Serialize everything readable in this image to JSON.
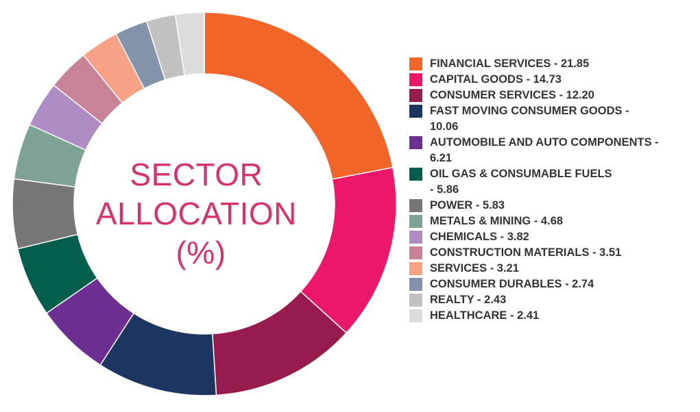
{
  "chart_data": {
    "type": "pie",
    "title": "SECTOR\nALLOCATION\n(%)",
    "title_lines": [
      "SECTOR",
      "ALLOCATION",
      "(%)"
    ],
    "title_color": "#d6336c",
    "legend_placement": "right",
    "slices": [
      {
        "label": "FINANCIAL SERVICES - 21.85",
        "value": 21.85,
        "color": "#f26529"
      },
      {
        "label": "CAPITAL GOODS - 14.73",
        "value": 14.73,
        "color": "#ed1769"
      },
      {
        "label": "CONSUMER SERVICES - 12.20",
        "value": 12.2,
        "color": "#981b4e"
      },
      {
        "label": "FAST MOVING CONSUMER GOODS -\n10.06",
        "value": 10.06,
        "color": "#1c3661"
      },
      {
        "label": "AUTOMOBILE AND AUTO COMPONENTS -\n6.21",
        "value": 6.21,
        "color": "#6d2e92"
      },
      {
        "label": "OIL GAS & CONSUMABLE FUELS\n- 5.86",
        "value": 5.86,
        "color": "#035f4c"
      },
      {
        "label": "POWER - 5.83",
        "value": 5.83,
        "color": "#767676"
      },
      {
        "label": "METALS & MINING - 4.68",
        "value": 4.68,
        "color": "#7ea394"
      },
      {
        "label": "CHEMICALS - 3.82",
        "value": 3.82,
        "color": "#af8cc3"
      },
      {
        "label": "CONSTRUCTION MATERIALS - 3.51",
        "value": 3.51,
        "color": "#c98397"
      },
      {
        "label": "SERVICES - 3.21",
        "value": 3.21,
        "color": "#f7a285"
      },
      {
        "label": "CONSUMER DURABLES - 2.74",
        "value": 2.74,
        "color": "#8592ac"
      },
      {
        "label": "REALTY - 2.43",
        "value": 2.43,
        "color": "#c1c1c1"
      },
      {
        "label": "HEALTHCARE - 2.41",
        "value": 2.41,
        "color": "#dcdcdc"
      }
    ]
  }
}
